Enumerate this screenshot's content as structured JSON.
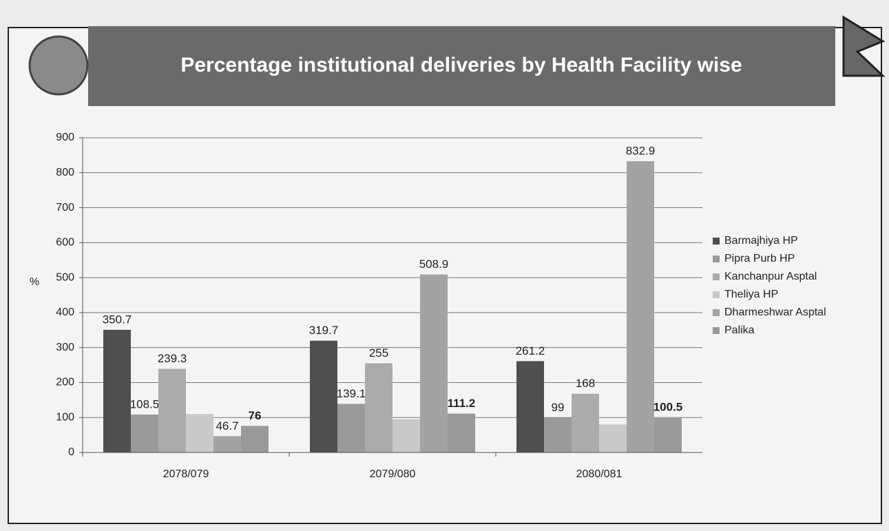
{
  "chart_data": {
    "type": "bar",
    "title": "Percentage institutional deliveries by Health Facility wise",
    "y_label": "%",
    "categories": [
      "2078/079",
      "2079/080",
      "2080/081"
    ],
    "series": [
      {
        "name": "Barmajhiya HP",
        "color": "#4f4f4f",
        "values": [
          350.7,
          319.7,
          261.2
        ]
      },
      {
        "name": "Pipra Purb HP",
        "color": "#9a9a9a",
        "values": [
          108.5,
          139.1,
          99
        ]
      },
      {
        "name": "Kanchanpur Asptal",
        "color": "#ababab",
        "values": [
          239.3,
          255,
          168
        ]
      },
      {
        "name": "Theliya HP",
        "color": "#c9c9c9",
        "values": [
          110,
          95,
          80
        ],
        "show_labels": false
      },
      {
        "name": "Dharmeshwar Asptal",
        "color": "#a3a3a3",
        "values": [
          46.7,
          508.9,
          832.9
        ]
      },
      {
        "name": "Palika",
        "color": "#999999",
        "values": [
          76,
          111.2,
          100.5
        ],
        "label_bold": true
      }
    ],
    "ylim": [
      0,
      900
    ],
    "yticks": [
      0,
      100,
      200,
      300,
      400,
      500,
      600,
      700,
      800,
      900
    ],
    "grid": true,
    "legend": "right"
  }
}
